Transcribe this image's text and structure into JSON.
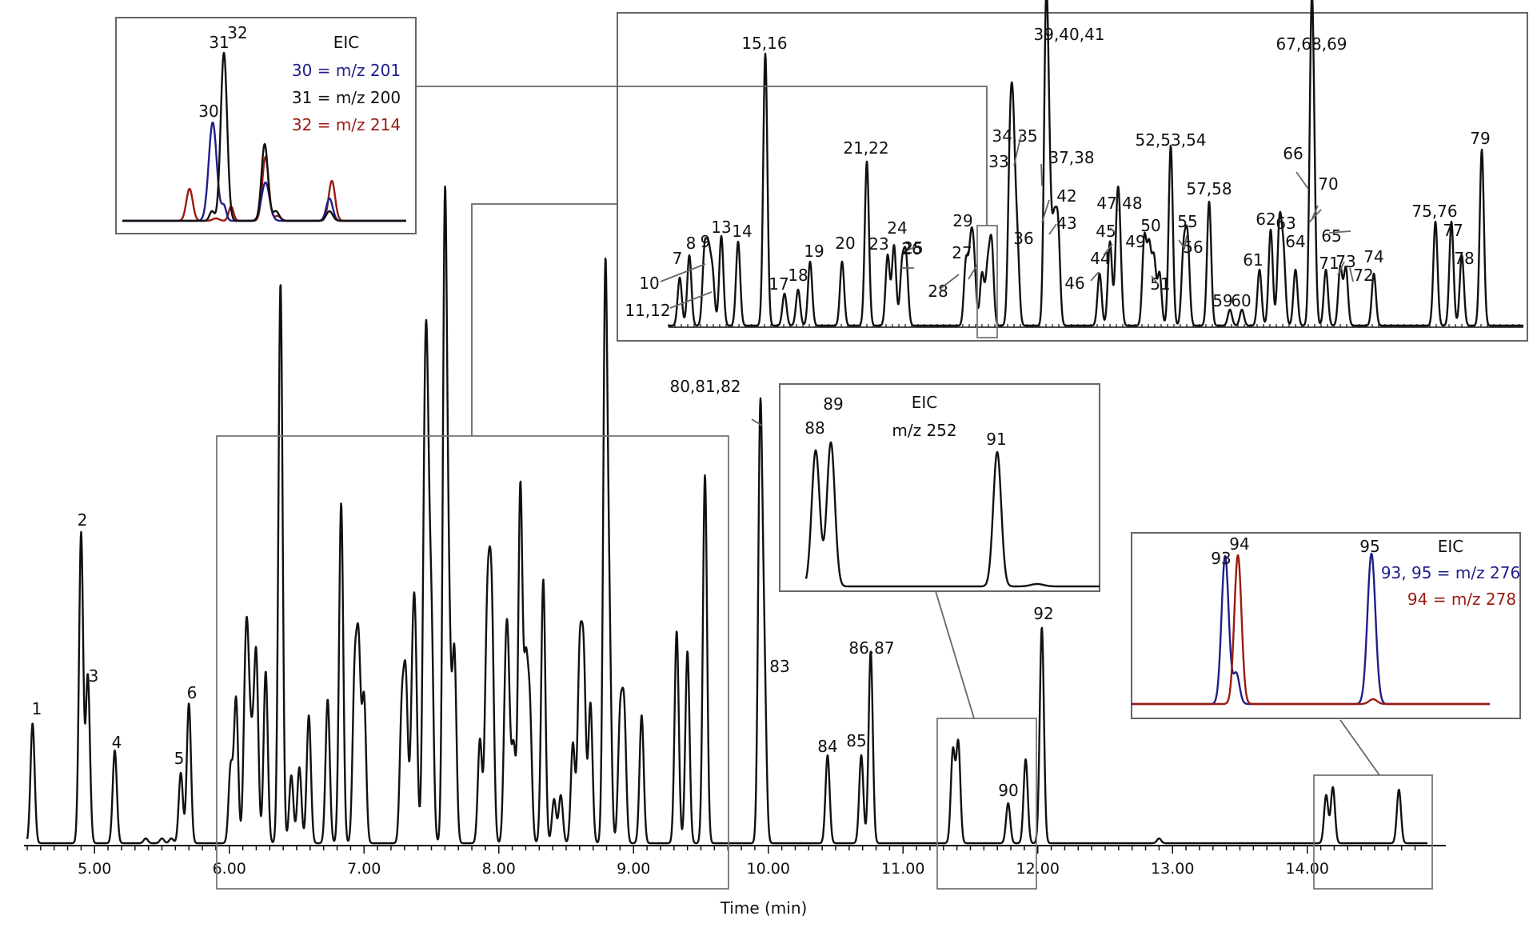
{
  "chart_data": [
    {
      "type": "line",
      "xlabel": "Time (min)",
      "ylabel": "",
      "xlim": [
        4.5,
        14.85
      ],
      "x_ticks": [
        "5.00",
        "6.00",
        "7.00",
        "8.00",
        "9.00",
        "10.00",
        "11.00",
        "12.00",
        "13.00",
        "14.00"
      ],
      "legend": "none",
      "grid": false,
      "series": [
        {
          "color": "#111111",
          "peaks": [
            {
              "t": 4.54,
              "h": 150
            },
            {
              "t": 4.9,
              "h": 388
            },
            {
              "t": 4.95,
              "h": 210
            },
            {
              "t": 5.15,
              "h": 116
            },
            {
              "t": 5.38,
              "h": 6
            },
            {
              "t": 5.5,
              "h": 6
            },
            {
              "t": 5.57,
              "h": 6
            },
            {
              "t": 5.64,
              "h": 88
            },
            {
              "t": 5.7,
              "h": 175
            },
            {
              "t": 6.01,
              "h": 95
            },
            {
              "t": 6.05,
              "h": 180
            },
            {
              "t": 6.12,
              "h": 185
            },
            {
              "t": 6.14,
              "h": 160
            },
            {
              "t": 6.17,
              "h": 100
            },
            {
              "t": 6.2,
              "h": 228
            },
            {
              "t": 6.27,
              "h": 215
            },
            {
              "t": 6.38,
              "h": 700
            },
            {
              "t": 6.46,
              "h": 85
            },
            {
              "t": 6.52,
              "h": 95
            },
            {
              "t": 6.59,
              "h": 160
            },
            {
              "t": 6.73,
              "h": 180
            },
            {
              "t": 6.83,
              "h": 425
            },
            {
              "t": 6.93,
              "h": 200
            },
            {
              "t": 6.96,
              "h": 230
            },
            {
              "t": 7.0,
              "h": 180
            },
            {
              "t": 7.28,
              "h": 160
            },
            {
              "t": 7.31,
              "h": 195
            },
            {
              "t": 7.36,
              "h": 170
            },
            {
              "t": 7.38,
              "h": 215
            },
            {
              "t": 7.45,
              "h": 400
            },
            {
              "t": 7.47,
              "h": 395
            },
            {
              "t": 7.5,
              "h": 260
            },
            {
              "t": 7.6,
              "h": 780
            },
            {
              "t": 7.63,
              "h": 250
            },
            {
              "t": 7.67,
              "h": 240
            },
            {
              "t": 7.86,
              "h": 130
            },
            {
              "t": 7.91,
              "h": 210
            },
            {
              "t": 7.93,
              "h": 180
            },
            {
              "t": 7.95,
              "h": 230
            },
            {
              "t": 8.05,
              "h": 170
            },
            {
              "t": 8.07,
              "h": 175
            },
            {
              "t": 8.11,
              "h": 120
            },
            {
              "t": 8.16,
              "h": 445
            },
            {
              "t": 8.2,
              "h": 205
            },
            {
              "t": 8.23,
              "h": 160
            },
            {
              "t": 8.33,
              "h": 330
            },
            {
              "t": 8.41,
              "h": 55
            },
            {
              "t": 8.46,
              "h": 60
            },
            {
              "t": 8.55,
              "h": 125
            },
            {
              "t": 8.6,
              "h": 225
            },
            {
              "t": 8.63,
              "h": 220
            },
            {
              "t": 8.68,
              "h": 175
            },
            {
              "t": 8.79,
              "h": 690
            },
            {
              "t": 8.82,
              "h": 250
            },
            {
              "t": 8.9,
              "h": 150
            },
            {
              "t": 8.93,
              "h": 160
            },
            {
              "t": 9.06,
              "h": 160
            },
            {
              "t": 9.32,
              "h": 265
            },
            {
              "t": 9.4,
              "h": 240
            },
            {
              "t": 9.53,
              "h": 460
            },
            {
              "t": 9.94,
              "h": 520
            },
            {
              "t": 9.97,
              "h": 210
            },
            {
              "t": 10.44,
              "h": 110
            },
            {
              "t": 10.69,
              "h": 110
            },
            {
              "t": 10.76,
              "h": 240
            },
            {
              "t": 11.37,
              "h": 115
            },
            {
              "t": 11.41,
              "h": 125
            },
            {
              "t": 11.78,
              "h": 50
            },
            {
              "t": 11.91,
              "h": 105
            },
            {
              "t": 12.03,
              "h": 270
            },
            {
              "t": 12.9,
              "h": 6
            },
            {
              "t": 14.14,
              "h": 60
            },
            {
              "t": 14.19,
              "h": 70
            },
            {
              "t": 14.68,
              "h": 67
            }
          ]
        }
      ],
      "annotations": [
        "1",
        "2",
        "3",
        "4",
        "5",
        "6",
        "80,81,82",
        "83",
        "84",
        "85",
        "86,87",
        "90",
        "92"
      ]
    },
    {
      "type": "line",
      "title": "EIC",
      "series": [
        {
          "name": "30 = m/z 201",
          "color": "#1f1f8a"
        },
        {
          "name": "31 = m/z 200",
          "color": "#111111"
        },
        {
          "name": "32 = m/z 214",
          "color": "#9a1a12"
        }
      ],
      "peak_labels": [
        "30",
        "31",
        "32"
      ]
    },
    {
      "type": "line",
      "series": [
        {
          "color": "#111111"
        }
      ],
      "peak_labels": [
        "7",
        "8",
        "9",
        "10",
        "11,12",
        "13",
        "14",
        "15,16",
        "17",
        "18",
        "19",
        "20",
        "21,22",
        "23",
        "24",
        "25",
        "26",
        "27",
        "28",
        "29",
        "33",
        "34,35",
        "36",
        "37,38",
        "39,40,41",
        "42",
        "43",
        "44",
        "45",
        "46",
        "47,48",
        "49",
        "50",
        "51",
        "52,53,54",
        "55",
        "56",
        "57,58",
        "59",
        "60",
        "61",
        "62",
        "63",
        "64",
        "65",
        "66",
        "67,68,69",
        "70",
        "71",
        "72",
        "73",
        "74",
        "75,76",
        "77",
        "78",
        "79"
      ]
    },
    {
      "type": "line",
      "title": "EIC",
      "subtitle": "m/z 252",
      "series": [
        {
          "color": "#111111"
        }
      ],
      "peak_labels": [
        "88",
        "89",
        "91"
      ]
    },
    {
      "type": "line",
      "title": "EIC",
      "series": [
        {
          "name": "93, 95 = m/z 276",
          "color": "#1f1f8a"
        },
        {
          "name": "94 = m/z 278",
          "color": "#9a1a12"
        }
      ],
      "peak_labels": [
        "93",
        "94",
        "95"
      ]
    }
  ]
}
